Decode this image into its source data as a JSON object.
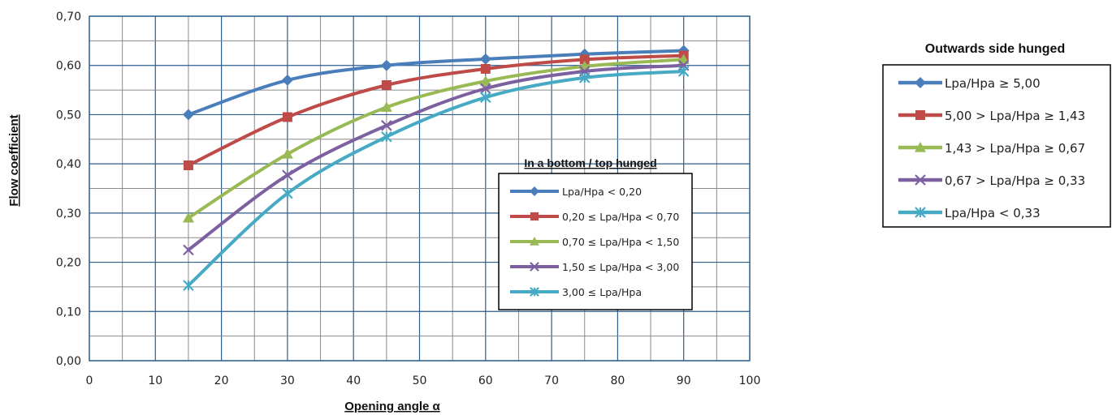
{
  "chart_data": {
    "type": "line",
    "xlabel": "Opening angle α",
    "ylabel": "Flow coefficient",
    "xlim": [
      0,
      100
    ],
    "ylim": [
      0,
      0.7
    ],
    "x_ticks": [
      "0",
      "10",
      "20",
      "30",
      "40",
      "50",
      "60",
      "70",
      "80",
      "90",
      "100"
    ],
    "y_ticks": [
      "0,00",
      "0,10",
      "0,20",
      "0,30",
      "0,40",
      "0,50",
      "0,60",
      "0,70"
    ],
    "grid": true,
    "x": [
      15,
      30,
      45,
      60,
      75,
      90
    ],
    "series": [
      {
        "name": "Lpa/Hpa < 0,20",
        "color": "#4a7ebb",
        "marker": "diamond",
        "values": [
          0.5,
          0.57,
          0.6,
          0.613,
          0.623,
          0.63
        ]
      },
      {
        "name": "0,20 ≤ Lpa/Hpa < 0,70",
        "color": "#be4b48",
        "marker": "square",
        "values": [
          0.397,
          0.495,
          0.56,
          0.593,
          0.612,
          0.62
        ]
      },
      {
        "name": "0,70 ≤ Lpa/Hpa < 1,50",
        "color": "#98b954",
        "marker": "triangle",
        "values": [
          0.29,
          0.42,
          0.515,
          0.568,
          0.598,
          0.612
        ]
      },
      {
        "name": "1,50 ≤ Lpa/Hpa < 3,00",
        "color": "#7d60a0",
        "marker": "x",
        "values": [
          0.225,
          0.377,
          0.478,
          0.553,
          0.588,
          0.6
        ]
      },
      {
        "name": "3,00 ≤ Lpa/Hpa",
        "color": "#46aac5",
        "marker": "star",
        "values": [
          0.153,
          0.34,
          0.455,
          0.535,
          0.575,
          0.588
        ]
      }
    ],
    "legend_inner": {
      "title": "In a bottom / top hunged",
      "placement": "lower-right inside plot"
    },
    "legend_outer": {
      "title": "Outwards side hunged",
      "placement": "right of plot",
      "entries": [
        "Lpa/Hpa ≥ 5,00",
        "5,00 > Lpa/Hpa ≥ 1,43",
        "1,43 > Lpa/Hpa ≥ 0,67",
        "0,67 > Lpa/Hpa ≥ 0,33",
        "Lpa/Hpa < 0,33"
      ]
    }
  }
}
